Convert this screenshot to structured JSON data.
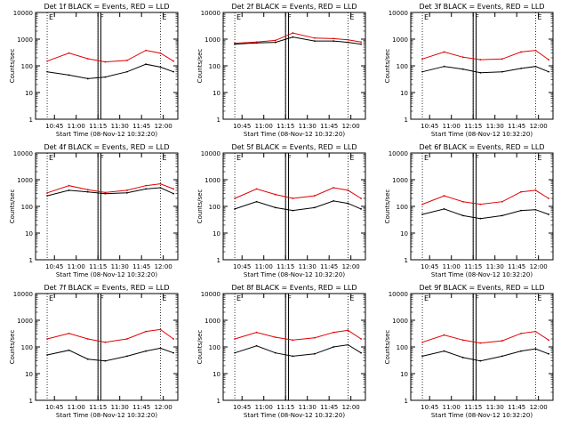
{
  "page": {
    "background": "#ffffff",
    "event_color": "#000000",
    "lld_color": "#e00000"
  },
  "shared": {
    "x_ticks": [
      "10:45",
      "11:00",
      "11:15",
      "11:30",
      "11:45",
      "12:00"
    ],
    "x_axis_label": "Start Time (08-Nov-12 10:32:20)",
    "y_ticks": [
      "1",
      "10",
      "100",
      "1000",
      "10000"
    ],
    "y_axis_label": "Counts/sec",
    "y_scale": "log",
    "ylim": [
      1,
      10000
    ],
    "xlim_minutes": [
      "10:32",
      "12:10"
    ],
    "marker_labels": [
      "E",
      "F",
      "E"
    ]
  },
  "chart_data": [
    {
      "type": "line",
      "title": "Det 1f BLACK = Events, RED = LLD",
      "x": [
        "10:40",
        "10:55",
        "11:08",
        "11:20",
        "11:35",
        "11:48",
        "11:58",
        "12:07"
      ],
      "series": [
        {
          "name": "Events",
          "values": [
            60,
            45,
            33,
            38,
            60,
            115,
            90,
            60
          ]
        },
        {
          "name": "LLD",
          "values": [
            150,
            300,
            185,
            140,
            160,
            380,
            300,
            150
          ]
        }
      ]
    },
    {
      "type": "line",
      "title": "Det 2f BLACK = Events, RED = LLD",
      "x": [
        "10:40",
        "10:55",
        "11:08",
        "11:20",
        "11:35",
        "11:48",
        "11:58",
        "12:07"
      ],
      "series": [
        {
          "name": "Events",
          "values": [
            650,
            720,
            760,
            1200,
            850,
            850,
            760,
            650
          ]
        },
        {
          "name": "LLD",
          "values": [
            700,
            780,
            900,
            1700,
            1100,
            1050,
            950,
            780
          ]
        }
      ]
    },
    {
      "type": "line",
      "title": "Det 3f BLACK = Events, RED = LLD",
      "x": [
        "10:40",
        "10:55",
        "11:08",
        "11:20",
        "11:35",
        "11:48",
        "11:58",
        "12:07"
      ],
      "series": [
        {
          "name": "Events",
          "values": [
            60,
            95,
            75,
            55,
            60,
            80,
            95,
            60
          ]
        },
        {
          "name": "LLD",
          "values": [
            180,
            330,
            210,
            170,
            180,
            330,
            380,
            170
          ]
        }
      ]
    },
    {
      "type": "line",
      "title": "Det 4f BLACK = Events, RED = LLD",
      "x": [
        "10:40",
        "10:55",
        "11:08",
        "11:20",
        "11:35",
        "11:48",
        "11:58",
        "12:07"
      ],
      "series": [
        {
          "name": "Events",
          "values": [
            250,
            400,
            350,
            300,
            320,
            450,
            500,
            300
          ]
        },
        {
          "name": "LLD",
          "values": [
            320,
            600,
            420,
            330,
            400,
            600,
            700,
            450
          ]
        }
      ]
    },
    {
      "type": "line",
      "title": "Det 5f BLACK = Events, RED = LLD",
      "x": [
        "10:40",
        "10:55",
        "11:08",
        "11:20",
        "11:35",
        "11:48",
        "11:58",
        "12:07"
      ],
      "series": [
        {
          "name": "Events",
          "values": [
            80,
            150,
            90,
            70,
            90,
            160,
            130,
            80
          ]
        },
        {
          "name": "LLD",
          "values": [
            200,
            450,
            280,
            200,
            250,
            500,
            400,
            200
          ]
        }
      ]
    },
    {
      "type": "line",
      "title": "Det 6f BLACK = Events, RED = LLD",
      "x": [
        "10:40",
        "10:55",
        "11:08",
        "11:20",
        "11:35",
        "11:48",
        "11:58",
        "12:07"
      ],
      "series": [
        {
          "name": "Events",
          "values": [
            50,
            80,
            45,
            35,
            45,
            70,
            75,
            50
          ]
        },
        {
          "name": "LLD",
          "values": [
            120,
            250,
            150,
            120,
            150,
            350,
            400,
            200
          ]
        }
      ]
    },
    {
      "type": "line",
      "title": "Det 7f BLACK = Events, RED = LLD",
      "x": [
        "10:40",
        "10:55",
        "11:08",
        "11:20",
        "11:35",
        "11:48",
        "11:58",
        "12:07"
      ],
      "series": [
        {
          "name": "Events",
          "values": [
            50,
            75,
            35,
            30,
            45,
            70,
            90,
            60
          ]
        },
        {
          "name": "LLD",
          "values": [
            200,
            320,
            200,
            150,
            200,
            380,
            450,
            200
          ]
        }
      ]
    },
    {
      "type": "line",
      "title": "Det 8f BLACK = Events, RED = LLD",
      "x": [
        "10:40",
        "10:55",
        "11:08",
        "11:20",
        "11:35",
        "11:48",
        "11:58",
        "12:07"
      ],
      "series": [
        {
          "name": "Events",
          "values": [
            60,
            110,
            60,
            45,
            55,
            100,
            120,
            60
          ]
        },
        {
          "name": "LLD",
          "values": [
            200,
            350,
            230,
            180,
            220,
            350,
            420,
            200
          ]
        }
      ]
    },
    {
      "type": "line",
      "title": "Det 9f BLACK = Events, RED = LLD",
      "x": [
        "10:40",
        "10:55",
        "11:08",
        "11:20",
        "11:35",
        "11:48",
        "11:58",
        "12:07"
      ],
      "series": [
        {
          "name": "Events",
          "values": [
            45,
            70,
            40,
            30,
            45,
            70,
            85,
            55
          ]
        },
        {
          "name": "LLD",
          "values": [
            150,
            280,
            180,
            140,
            170,
            320,
            380,
            180
          ]
        }
      ]
    }
  ]
}
